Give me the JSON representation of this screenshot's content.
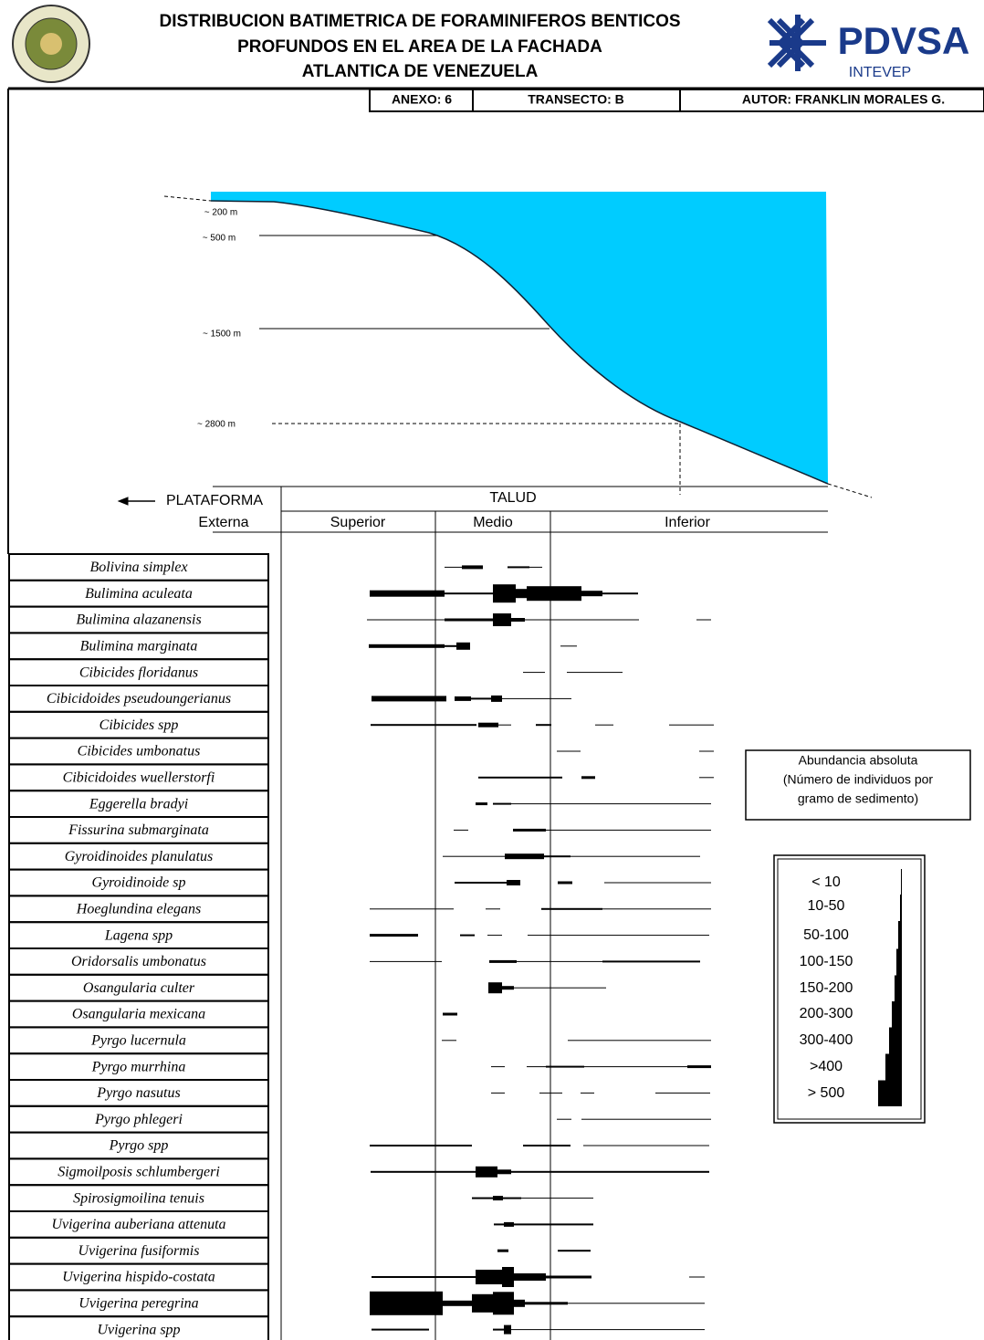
{
  "header": {
    "title_lines": [
      "DISTRIBUCION BATIMETRICA DE  FORAMINIFEROS BENTICOS",
      "PROFUNDOS  EN EL AREA DE LA FACHADA",
      "ATLANTICA DE VENEZUELA"
    ],
    "logo_text": "PDVSA",
    "logo_subtext": "INTEVEP",
    "anexo": "ANEXO:  6",
    "transecto": "TRANSECTO:  B",
    "autor": "AUTOR: FRANKLIN MORALES G."
  },
  "profile": {
    "depth_labels": [
      "~ 200 m",
      "~ 500 m",
      "~ 1500 m",
      "~ 2800 m"
    ]
  },
  "zones": {
    "plataforma": "PLATAFORMA",
    "talud": "TALUD",
    "externa": "Externa",
    "superior": "Superior",
    "medio": "Medio",
    "inferior": "Inferior"
  },
  "species": [
    "Bolivina simplex",
    "Bulimina aculeata",
    "Bulimina alazanensis",
    "Bulimina marginata",
    "Cibicides floridanus",
    "Cibicidoides pseudoungerianus",
    "Cibicides spp",
    "Cibicides umbonatus",
    "Cibicidoides wuellerstorfi",
    "Eggerella bradyi",
    "Fissurina submarginata",
    "Gyroidinoides planulatus",
    "Gyroidinoide sp",
    "Hoeglundina elegans",
    "Lagena spp",
    "Oridorsalis umbonatus",
    "Osangularia culter",
    "Osangularia mexicana",
    "Pyrgo lucernula",
    "Pyrgo murrhina",
    "Pyrgo nasutus",
    "Pyrgo phlegeri",
    "Pyrgo spp",
    "Sigmoilposis schlumbergeri",
    "Spirosigmoilina tenuis",
    "Uvigerina auberiana attenuta",
    "Uvigerina fusiformis",
    "Uvigerina hispido-costata",
    "Uvigerina peregrina",
    "Uvigerina spp"
  ],
  "legend": {
    "title_lines": [
      "Abundancia absoluta",
      "(Número de individuos por",
      "gramo de sedimento)"
    ],
    "classes": [
      "< 10",
      "10-50",
      "50-100",
      "100-150",
      "150-200",
      "200-300",
      "300-400",
      ">400",
      "> 500"
    ]
  }
}
